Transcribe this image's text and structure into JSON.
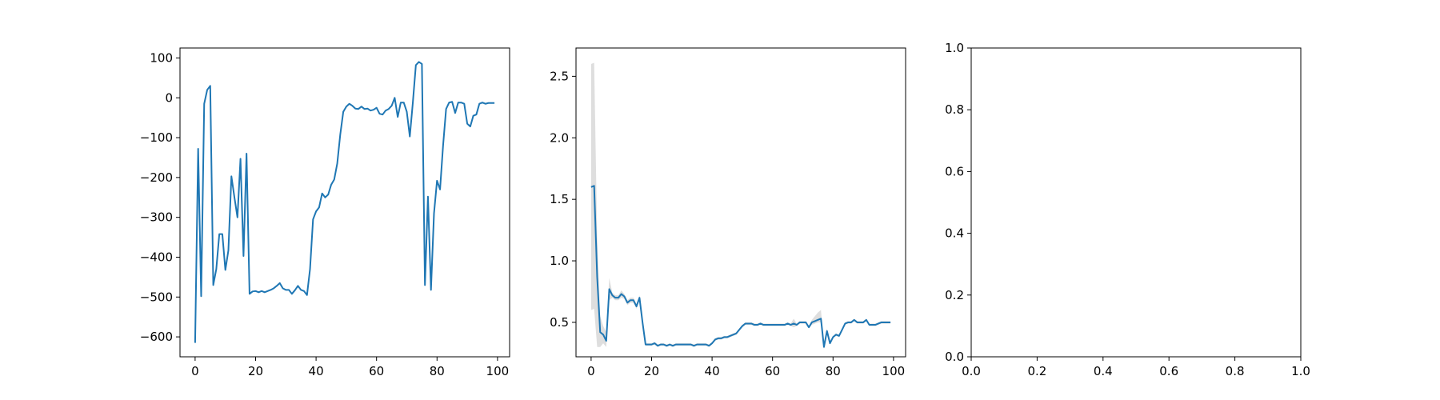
{
  "chart_data": [
    {
      "type": "line",
      "title": "",
      "xlabel": "",
      "ylabel": "",
      "xlim": [
        -5,
        104
      ],
      "ylim": [
        -650,
        125
      ],
      "xticks": [
        0,
        20,
        40,
        60,
        80,
        100
      ],
      "yticks": [
        -600,
        -500,
        -400,
        -300,
        -200,
        -100,
        0,
        100
      ],
      "grid": false,
      "color": "#1f77b4",
      "series": [
        {
          "x": [
            0,
            1,
            2,
            3,
            4,
            5,
            6,
            7,
            8,
            9,
            10,
            11,
            12,
            13,
            14,
            15,
            16,
            17,
            18,
            19,
            20,
            21,
            22,
            23,
            24,
            25,
            26,
            27,
            28,
            29,
            30,
            31,
            32,
            33,
            34,
            35,
            36,
            37,
            38,
            39,
            40,
            41,
            42,
            43,
            44,
            45,
            46,
            47,
            48,
            49,
            50,
            51,
            52,
            53,
            54,
            55,
            56,
            57,
            58,
            59,
            60,
            61,
            62,
            63,
            64,
            65,
            66,
            67,
            68,
            69,
            70,
            71,
            72,
            73,
            74,
            75,
            76,
            77,
            78,
            79,
            80,
            81,
            82,
            83,
            84,
            85,
            86,
            87,
            88,
            89,
            90,
            91,
            92,
            93,
            94,
            95,
            96,
            97,
            98,
            99
          ],
          "y": [
            -615,
            -128,
            -498,
            -15,
            20,
            30,
            -470,
            -430,
            -342,
            -342,
            -432,
            -383,
            -197,
            -250,
            -300,
            -153,
            -397,
            -140,
            -492,
            -486,
            -485,
            -488,
            -485,
            -488,
            -485,
            -482,
            -478,
            -472,
            -465,
            -478,
            -482,
            -482,
            -492,
            -483,
            -472,
            -482,
            -485,
            -495,
            -430,
            -305,
            -285,
            -275,
            -240,
            -250,
            -243,
            -218,
            -205,
            -165,
            -92,
            -35,
            -22,
            -15,
            -20,
            -27,
            -28,
            -22,
            -28,
            -27,
            -32,
            -30,
            -25,
            -40,
            -42,
            -32,
            -28,
            -20,
            0,
            -48,
            -12,
            -12,
            -35,
            -97,
            -12,
            82,
            90,
            85,
            -470,
            -248,
            -482,
            -290,
            -208,
            -230,
            -120,
            -28,
            -12,
            -10,
            -38,
            -12,
            -12,
            -15,
            -65,
            -72,
            -45,
            -42,
            -15,
            -12,
            -15,
            -13,
            -13,
            -13
          ]
        }
      ]
    },
    {
      "type": "line",
      "title": "",
      "xlabel": "",
      "ylabel": "",
      "xlim": [
        -5,
        104
      ],
      "ylim": [
        0.22,
        2.73
      ],
      "xticks": [
        0,
        20,
        40,
        60,
        80,
        100
      ],
      "yticks": [
        0.5,
        1.0,
        1.5,
        2.0,
        2.5
      ],
      "grid": false,
      "color": "#1f77b4",
      "band_color": "#bdbdbd",
      "series": [
        {
          "x": [
            0,
            1,
            2,
            3,
            4,
            5,
            6,
            7,
            8,
            9,
            10,
            11,
            12,
            13,
            14,
            15,
            16,
            17,
            18,
            19,
            20,
            21,
            22,
            23,
            24,
            25,
            26,
            27,
            28,
            29,
            30,
            31,
            32,
            33,
            34,
            35,
            36,
            37,
            38,
            39,
            40,
            41,
            42,
            43,
            44,
            45,
            46,
            47,
            48,
            49,
            50,
            51,
            52,
            53,
            54,
            55,
            56,
            57,
            58,
            59,
            60,
            61,
            62,
            63,
            64,
            65,
            66,
            67,
            68,
            69,
            70,
            71,
            72,
            73,
            74,
            75,
            76,
            77,
            78,
            79,
            80,
            81,
            82,
            83,
            84,
            85,
            86,
            87,
            88,
            89,
            90,
            91,
            92,
            93,
            94,
            95,
            96,
            97,
            98,
            99
          ],
          "y": [
            1.6,
            1.61,
            0.87,
            0.42,
            0.4,
            0.35,
            0.77,
            0.72,
            0.7,
            0.7,
            0.73,
            0.71,
            0.66,
            0.68,
            0.68,
            0.63,
            0.7,
            0.5,
            0.32,
            0.32,
            0.32,
            0.33,
            0.31,
            0.32,
            0.32,
            0.31,
            0.32,
            0.31,
            0.32,
            0.32,
            0.32,
            0.32,
            0.32,
            0.32,
            0.31,
            0.32,
            0.32,
            0.32,
            0.32,
            0.31,
            0.33,
            0.36,
            0.37,
            0.37,
            0.38,
            0.38,
            0.39,
            0.4,
            0.41,
            0.44,
            0.47,
            0.49,
            0.49,
            0.49,
            0.48,
            0.48,
            0.49,
            0.48,
            0.48,
            0.48,
            0.48,
            0.48,
            0.48,
            0.48,
            0.48,
            0.49,
            0.48,
            0.49,
            0.48,
            0.5,
            0.5,
            0.5,
            0.46,
            0.5,
            0.51,
            0.52,
            0.53,
            0.3,
            0.43,
            0.33,
            0.38,
            0.4,
            0.39,
            0.44,
            0.49,
            0.5,
            0.5,
            0.52,
            0.5,
            0.5,
            0.5,
            0.52,
            0.48,
            0.48,
            0.48,
            0.49,
            0.5,
            0.5,
            0.5,
            0.5
          ],
          "lower": [
            0.6,
            0.61,
            0.3,
            0.3,
            0.33,
            0.3,
            0.68,
            0.7,
            0.68,
            0.68,
            0.7,
            0.69,
            0.64,
            0.66,
            0.66,
            0.61,
            0.68,
            0.48,
            0.31,
            0.31,
            0.31,
            0.32,
            0.3,
            0.31,
            0.31,
            0.3,
            0.31,
            0.3,
            0.31,
            0.31,
            0.31,
            0.31,
            0.31,
            0.31,
            0.3,
            0.31,
            0.31,
            0.31,
            0.31,
            0.3,
            0.32,
            0.35,
            0.36,
            0.36,
            0.37,
            0.37,
            0.38,
            0.39,
            0.4,
            0.43,
            0.46,
            0.48,
            0.48,
            0.48,
            0.47,
            0.47,
            0.48,
            0.47,
            0.47,
            0.47,
            0.47,
            0.47,
            0.47,
            0.47,
            0.47,
            0.48,
            0.47,
            0.46,
            0.47,
            0.49,
            0.49,
            0.49,
            0.45,
            0.48,
            0.49,
            0.5,
            0.5,
            0.28,
            0.41,
            0.32,
            0.37,
            0.39,
            0.38,
            0.43,
            0.48,
            0.49,
            0.49,
            0.51,
            0.49,
            0.49,
            0.49,
            0.51,
            0.47,
            0.47,
            0.47,
            0.48,
            0.49,
            0.49,
            0.49,
            0.49
          ],
          "upper": [
            2.6,
            2.61,
            1.2,
            0.55,
            0.47,
            0.42,
            0.86,
            0.74,
            0.72,
            0.72,
            0.76,
            0.73,
            0.68,
            0.7,
            0.7,
            0.65,
            0.72,
            0.52,
            0.33,
            0.33,
            0.33,
            0.34,
            0.32,
            0.33,
            0.33,
            0.32,
            0.33,
            0.32,
            0.33,
            0.33,
            0.33,
            0.33,
            0.33,
            0.33,
            0.32,
            0.33,
            0.33,
            0.33,
            0.33,
            0.32,
            0.34,
            0.37,
            0.38,
            0.38,
            0.39,
            0.39,
            0.4,
            0.41,
            0.42,
            0.45,
            0.48,
            0.5,
            0.5,
            0.5,
            0.49,
            0.49,
            0.5,
            0.49,
            0.49,
            0.49,
            0.49,
            0.49,
            0.49,
            0.49,
            0.49,
            0.5,
            0.49,
            0.53,
            0.49,
            0.51,
            0.51,
            0.51,
            0.47,
            0.52,
            0.55,
            0.58,
            0.6,
            0.32,
            0.45,
            0.34,
            0.39,
            0.41,
            0.4,
            0.45,
            0.5,
            0.51,
            0.51,
            0.53,
            0.51,
            0.51,
            0.51,
            0.53,
            0.49,
            0.49,
            0.49,
            0.5,
            0.51,
            0.51,
            0.51,
            0.51
          ]
        }
      ]
    },
    {
      "type": "line",
      "title": "",
      "xlabel": "",
      "ylabel": "",
      "xlim": [
        0,
        1
      ],
      "ylim": [
        0,
        1
      ],
      "xticks": [
        0.0,
        0.2,
        0.4,
        0.6,
        0.8,
        1.0
      ],
      "yticks": [
        0.0,
        0.2,
        0.4,
        0.6,
        0.8,
        1.0
      ],
      "grid": false,
      "series": []
    }
  ]
}
